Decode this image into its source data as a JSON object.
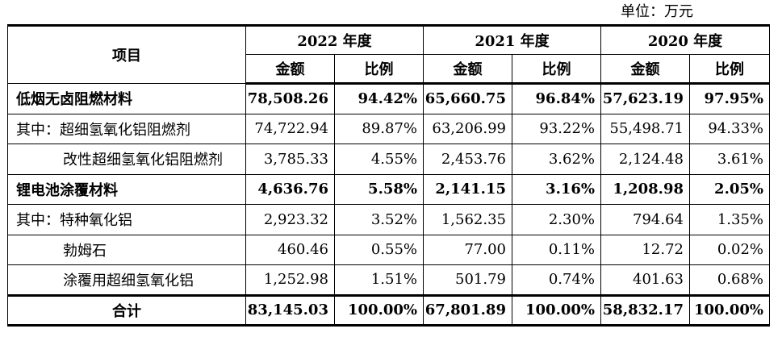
{
  "unit_label": "单位：万元",
  "header": {
    "item": "项目",
    "years": [
      "2022 年度",
      "2021 年度",
      "2020 年度"
    ],
    "amount": "金额",
    "ratio": "比例"
  },
  "rows": [
    {
      "label": "低烟无卤阻燃材料",
      "values": [
        "78,508.26",
        "94.42%",
        "65,660.75",
        "96.84%",
        "57,623.19",
        "97.95%"
      ]
    },
    {
      "label": "其中：超细氢氧化铝阻燃剂",
      "values": [
        "74,722.94",
        "89.87%",
        "63,206.99",
        "93.22%",
        "55,498.71",
        "94.33%"
      ]
    },
    {
      "label": "改性超细氢氧化铝阻燃剂",
      "values": [
        "3,785.33",
        "4.55%",
        "2,453.76",
        "3.62%",
        "2,124.48",
        "3.61%"
      ]
    },
    {
      "label": "锂电池涂覆材料",
      "values": [
        "4,636.76",
        "5.58%",
        "2,141.15",
        "3.16%",
        "1,208.98",
        "2.05%"
      ]
    },
    {
      "label": "其中：特种氧化铝",
      "values": [
        "2,923.32",
        "3.52%",
        "1,562.35",
        "2.30%",
        "794.64",
        "1.35%"
      ]
    },
    {
      "label": "勃姆石",
      "values": [
        "460.46",
        "0.55%",
        "77.00",
        "0.11%",
        "12.72",
        "0.02%"
      ]
    },
    {
      "label": "涂覆用超细氢氧化铝",
      "values": [
        "1,252.98",
        "1.51%",
        "501.79",
        "0.74%",
        "401.63",
        "0.68%"
      ]
    },
    {
      "label": "合计",
      "values": [
        "83,145.03",
        "100.00%",
        "67,801.89",
        "100.00%",
        "58,832.17",
        "100.00%"
      ]
    }
  ]
}
